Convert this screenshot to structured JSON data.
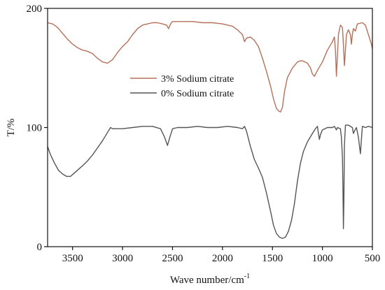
{
  "chart_data": {
    "type": "line",
    "xlabel": "Wave number/cm",
    "xlabel_superscript": "-1",
    "ylabel": "T/%",
    "xlim": [
      3750,
      500
    ],
    "ylim": [
      0,
      200
    ],
    "x_ticks": [
      "3500",
      "3000",
      "2500",
      "2000",
      "1500",
      "1000",
      "500"
    ],
    "y_ticks": [
      "0",
      "100",
      "200"
    ],
    "grid": false,
    "legend_position": "center",
    "series": [
      {
        "name": "3% Sodium citrate",
        "color": "#b5705a",
        "points": [
          [
            3750,
            188
          ],
          [
            3700,
            187
          ],
          [
            3650,
            184
          ],
          [
            3600,
            179
          ],
          [
            3550,
            174
          ],
          [
            3500,
            170
          ],
          [
            3450,
            167
          ],
          [
            3400,
            165
          ],
          [
            3350,
            164
          ],
          [
            3300,
            162
          ],
          [
            3250,
            158
          ],
          [
            3200,
            155
          ],
          [
            3150,
            154
          ],
          [
            3100,
            157
          ],
          [
            3050,
            163
          ],
          [
            3000,
            168
          ],
          [
            2950,
            172
          ],
          [
            2900,
            178
          ],
          [
            2850,
            183
          ],
          [
            2800,
            186
          ],
          [
            2750,
            187
          ],
          [
            2700,
            188
          ],
          [
            2650,
            188
          ],
          [
            2600,
            187
          ],
          [
            2560,
            186
          ],
          [
            2540,
            183
          ],
          [
            2520,
            187
          ],
          [
            2500,
            189
          ],
          [
            2400,
            189
          ],
          [
            2300,
            189
          ],
          [
            2200,
            188
          ],
          [
            2100,
            188
          ],
          [
            2000,
            187
          ],
          [
            1900,
            185
          ],
          [
            1850,
            182
          ],
          [
            1800,
            178
          ],
          [
            1780,
            172
          ],
          [
            1760,
            175
          ],
          [
            1720,
            176
          ],
          [
            1680,
            173
          ],
          [
            1640,
            168
          ],
          [
            1600,
            158
          ],
          [
            1560,
            147
          ],
          [
            1520,
            135
          ],
          [
            1490,
            124
          ],
          [
            1460,
            116
          ],
          [
            1440,
            114
          ],
          [
            1420,
            113
          ],
          [
            1400,
            117
          ],
          [
            1380,
            130
          ],
          [
            1350,
            142
          ],
          [
            1300,
            150
          ],
          [
            1250,
            155
          ],
          [
            1220,
            156
          ],
          [
            1200,
            156
          ],
          [
            1150,
            154
          ],
          [
            1120,
            150
          ],
          [
            1100,
            145
          ],
          [
            1080,
            143
          ],
          [
            1050,
            148
          ],
          [
            1000,
            155
          ],
          [
            950,
            165
          ],
          [
            900,
            172
          ],
          [
            880,
            176
          ],
          [
            870,
            165
          ],
          [
            860,
            143
          ],
          [
            850,
            160
          ],
          [
            840,
            178
          ],
          [
            820,
            186
          ],
          [
            800,
            184
          ],
          [
            790,
            170
          ],
          [
            780,
            152
          ],
          [
            770,
            165
          ],
          [
            760,
            178
          ],
          [
            740,
            182
          ],
          [
            720,
            178
          ],
          [
            710,
            170
          ],
          [
            700,
            178
          ],
          [
            690,
            183
          ],
          [
            670,
            181
          ],
          [
            650,
            187
          ],
          [
            600,
            188
          ],
          [
            570,
            186
          ],
          [
            540,
            178
          ],
          [
            510,
            170
          ],
          [
            500,
            166
          ]
        ]
      },
      {
        "name": "0% Sodium citrate",
        "color": "#555555",
        "points": [
          [
            3750,
            84
          ],
          [
            3720,
            77
          ],
          [
            3680,
            70
          ],
          [
            3640,
            64
          ],
          [
            3600,
            61
          ],
          [
            3560,
            59
          ],
          [
            3520,
            59
          ],
          [
            3480,
            62
          ],
          [
            3440,
            65
          ],
          [
            3400,
            68
          ],
          [
            3350,
            72
          ],
          [
            3300,
            77
          ],
          [
            3250,
            83
          ],
          [
            3200,
            89
          ],
          [
            3150,
            96
          ],
          [
            3120,
            100
          ],
          [
            3100,
            99
          ],
          [
            3000,
            99
          ],
          [
            2900,
            100
          ],
          [
            2800,
            101
          ],
          [
            2700,
            101
          ],
          [
            2620,
            99
          ],
          [
            2580,
            92
          ],
          [
            2550,
            85
          ],
          [
            2530,
            91
          ],
          [
            2500,
            99
          ],
          [
            2450,
            100
          ],
          [
            2350,
            100
          ],
          [
            2250,
            101
          ],
          [
            2150,
            100
          ],
          [
            2050,
            100
          ],
          [
            1950,
            101
          ],
          [
            1850,
            100
          ],
          [
            1800,
            99
          ],
          [
            1780,
            101
          ],
          [
            1760,
            97
          ],
          [
            1720,
            84
          ],
          [
            1680,
            73
          ],
          [
            1640,
            66
          ],
          [
            1600,
            58
          ],
          [
            1560,
            45
          ],
          [
            1520,
            30
          ],
          [
            1490,
            18
          ],
          [
            1460,
            11
          ],
          [
            1430,
            8
          ],
          [
            1400,
            7
          ],
          [
            1370,
            8
          ],
          [
            1340,
            13
          ],
          [
            1310,
            22
          ],
          [
            1280,
            36
          ],
          [
            1250,
            55
          ],
          [
            1220,
            70
          ],
          [
            1190,
            80
          ],
          [
            1150,
            88
          ],
          [
            1100,
            95
          ],
          [
            1070,
            99
          ],
          [
            1050,
            101
          ],
          [
            1040,
            95
          ],
          [
            1030,
            90
          ],
          [
            1020,
            94
          ],
          [
            1000,
            98
          ],
          [
            950,
            100
          ],
          [
            900,
            100
          ],
          [
            880,
            101
          ],
          [
            860,
            98
          ],
          [
            850,
            100
          ],
          [
            820,
            99
          ],
          [
            810,
            92
          ],
          [
            800,
            75
          ],
          [
            795,
            50
          ],
          [
            790,
            15
          ],
          [
            785,
            40
          ],
          [
            780,
            85
          ],
          [
            770,
            102
          ],
          [
            740,
            102
          ],
          [
            700,
            100
          ],
          [
            690,
            95
          ],
          [
            680,
            97
          ],
          [
            660,
            100
          ],
          [
            640,
            92
          ],
          [
            630,
            85
          ],
          [
            620,
            78
          ],
          [
            610,
            90
          ],
          [
            600,
            101
          ],
          [
            570,
            100
          ],
          [
            540,
            101
          ],
          [
            500,
            100
          ]
        ]
      }
    ]
  }
}
